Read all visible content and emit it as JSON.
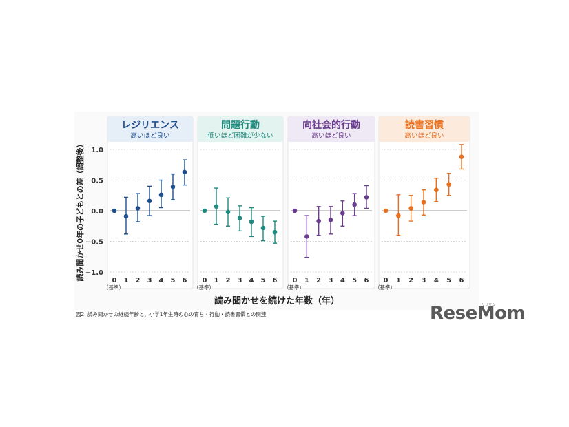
{
  "chart_data": {
    "type": "scatter",
    "subtype": "error-bar-panels",
    "ylabel": "読み聞かせ0年の子どもとの差（調整後）",
    "xlabel": "読み聞かせを続けた年数（年）",
    "y_ticks": [
      "1.0",
      "0.5",
      "0.0",
      "−0.5",
      "−1.0"
    ],
    "ylim": [
      -1.0,
      1.0
    ],
    "x_ticks": [
      "0",
      "1",
      "2",
      "3",
      "4",
      "5",
      "6"
    ],
    "x_base_note": "（基準）",
    "grid": "dotted horizontal at 0.5 intervals",
    "panels": [
      {
        "title": "レジリエンス",
        "subtitle": "高いほど良い",
        "color": "#1f4e8c",
        "header_bg": "#e6eef7",
        "x": [
          0,
          1,
          2,
          3,
          4,
          5,
          6
        ],
        "y": [
          0.0,
          -0.09,
          0.04,
          0.16,
          0.26,
          0.39,
          0.63
        ],
        "lower": [
          0.0,
          -0.38,
          -0.18,
          -0.08,
          0.05,
          0.18,
          0.42
        ],
        "upper": [
          0.0,
          0.22,
          0.28,
          0.4,
          0.5,
          0.6,
          0.83
        ]
      },
      {
        "title": "問題行動",
        "subtitle": "低いほど困難が少ない",
        "color": "#1f8a7e",
        "header_bg": "#e3f3f0",
        "x": [
          0,
          1,
          2,
          3,
          4,
          5,
          6
        ],
        "y": [
          0.0,
          0.07,
          -0.02,
          -0.12,
          -0.18,
          -0.28,
          -0.35
        ],
        "lower": [
          0.0,
          -0.22,
          -0.25,
          -0.33,
          -0.42,
          -0.49,
          -0.53
        ],
        "upper": [
          0.0,
          0.37,
          0.21,
          0.08,
          0.05,
          -0.09,
          -0.17
        ]
      },
      {
        "title": "向社会的行動",
        "subtitle": "高いほど良い",
        "color": "#6a3d8e",
        "header_bg": "#efe8f5",
        "x": [
          0,
          1,
          2,
          3,
          4,
          5,
          6
        ],
        "y": [
          0.0,
          -0.42,
          -0.17,
          -0.15,
          -0.04,
          0.1,
          0.22
        ],
        "lower": [
          0.0,
          -0.76,
          -0.4,
          -0.38,
          -0.25,
          -0.08,
          0.04
        ],
        "upper": [
          0.0,
          -0.08,
          0.07,
          0.07,
          0.16,
          0.28,
          0.41
        ]
      },
      {
        "title": "読書習慣",
        "subtitle": "高いほど良い",
        "color": "#e8701f",
        "header_bg": "#fcebdd",
        "x": [
          0,
          1,
          2,
          3,
          4,
          5,
          6
        ],
        "y": [
          0.0,
          -0.08,
          0.04,
          0.14,
          0.34,
          0.43,
          0.88
        ],
        "lower": [
          0.0,
          -0.4,
          -0.17,
          -0.07,
          0.15,
          0.25,
          0.68
        ],
        "upper": [
          0.0,
          0.26,
          0.25,
          0.34,
          0.53,
          0.61,
          1.08
        ]
      }
    ]
  },
  "caption": "図2. 読み聞かせの継続年齢と、小学1年生時の心の育ち・行動・読書習慣との関連",
  "brand": {
    "name": "ReseMom",
    "kana": "リセマム"
  }
}
